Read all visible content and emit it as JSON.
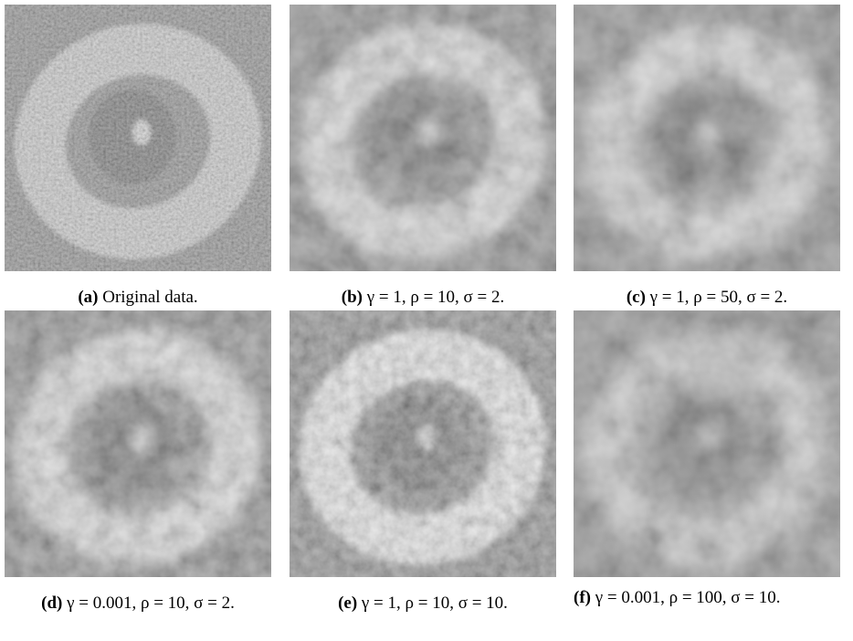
{
  "figure": {
    "panels": [
      {
        "label": "(a)",
        "caption": "Original data."
      },
      {
        "label": "(b)",
        "caption": "γ = 1, ρ = 10, σ = 2."
      },
      {
        "label": "(c)",
        "caption": "γ = 1, ρ = 50, σ = 2."
      },
      {
        "label": "(d)",
        "caption": "γ = 0.001, ρ = 10, σ = 2."
      },
      {
        "label": "(e)",
        "caption": "γ = 1, ρ = 10, σ = 10."
      },
      {
        "label": "(f)",
        "caption": "γ = 0.001, ρ = 100, σ = 10."
      }
    ]
  }
}
